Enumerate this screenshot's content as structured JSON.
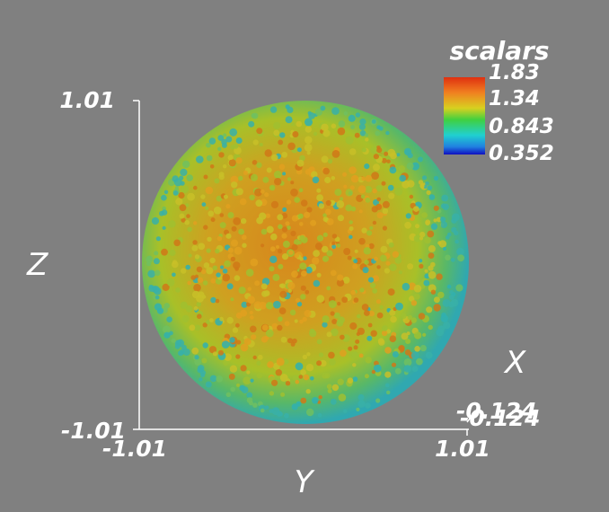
{
  "colorbar": {
    "title": "scalars",
    "labels": [
      "1.83",
      "1.34",
      "0.843",
      "0.352"
    ]
  },
  "axes": {
    "z": {
      "title": "Z",
      "labels": [
        "1.01",
        "-1.01"
      ]
    },
    "y": {
      "title": "Y",
      "labels": [
        "-1.01",
        "1.01"
      ]
    },
    "x": {
      "title": "X",
      "labels": [
        "-0.124",
        "-0.124"
      ]
    }
  }
}
